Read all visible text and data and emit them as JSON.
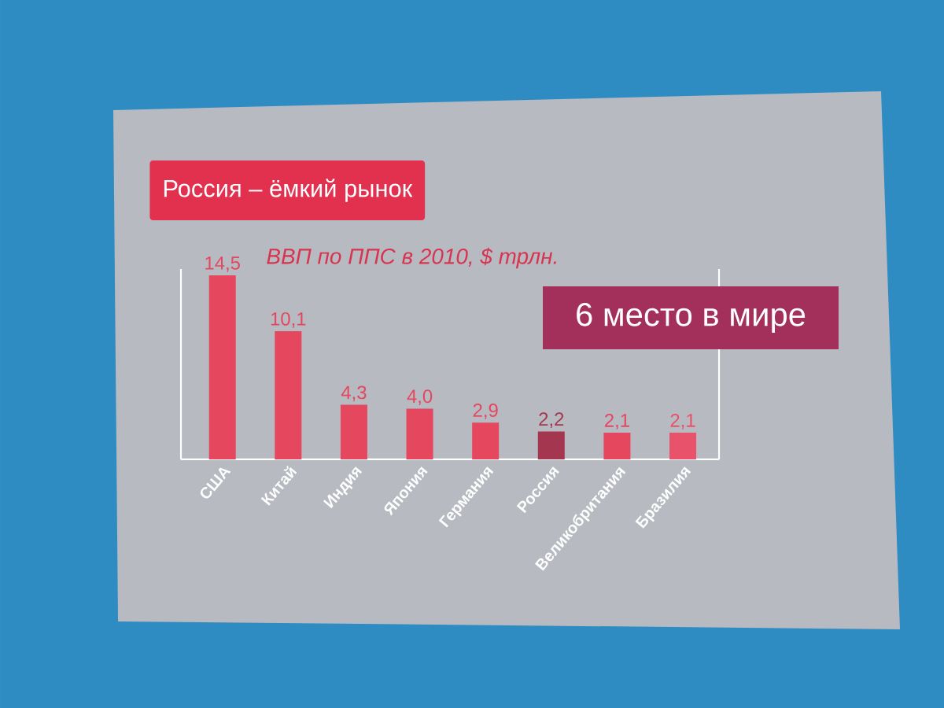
{
  "chart_data": {
    "type": "bar",
    "title": "Россия – ёмкий рынок",
    "subtitle": "ВВП по ППС в 2010, $ трлн.",
    "annotations": [
      "6 место в мире"
    ],
    "categories": [
      "США",
      "Китай",
      "Индия",
      "Япония",
      "Германия",
      "Россия",
      "Великобритания",
      "Бразилия"
    ],
    "values": [
      14.5,
      10.1,
      4.3,
      4.0,
      2.9,
      2.2,
      2.1,
      2.1
    ],
    "value_labels": [
      "14,5",
      "10,1",
      "4,3",
      "4,0",
      "2,9",
      "2,2",
      "2,1",
      "2,1"
    ],
    "colors": [
      "#e5475f",
      "#e5475f",
      "#e5475f",
      "#e5475f",
      "#e5475f",
      "#a5364f",
      "#e5475f",
      "#e8526a"
    ],
    "ylim": [
      0,
      15
    ],
    "tick_labels": "x"
  }
}
